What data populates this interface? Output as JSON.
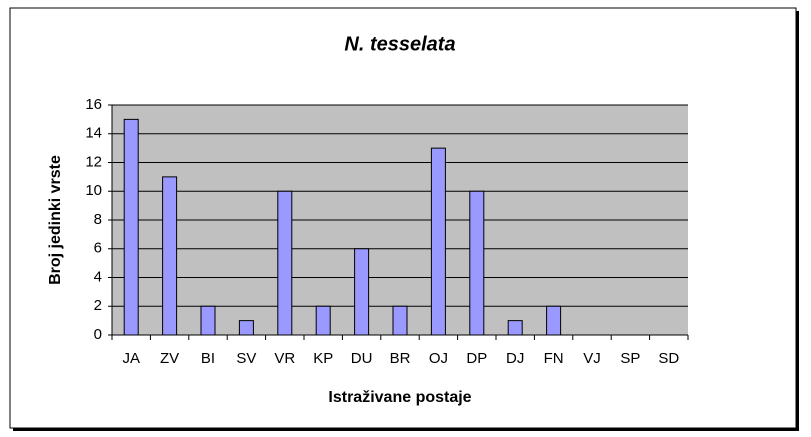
{
  "chart_data": {
    "type": "bar",
    "title": "N. tesselata",
    "x_label": "Istraživane postaje",
    "y_label": "Broj jedinki vrste",
    "categories": [
      "JA",
      "ZV",
      "BI",
      "SV",
      "VR",
      "KP",
      "DU",
      "BR",
      "OJ",
      "DP",
      "DJ",
      "FN",
      "VJ",
      "SP",
      "SD"
    ],
    "values": [
      15,
      11,
      2,
      1,
      10,
      2,
      6,
      2,
      13,
      10,
      1,
      2,
      0,
      0,
      0
    ],
    "color": "#9999ff",
    "ylim": [
      0,
      16
    ],
    "yticks": [
      0,
      2,
      4,
      6,
      8,
      10,
      12,
      14,
      16
    ],
    "grid": true
  }
}
